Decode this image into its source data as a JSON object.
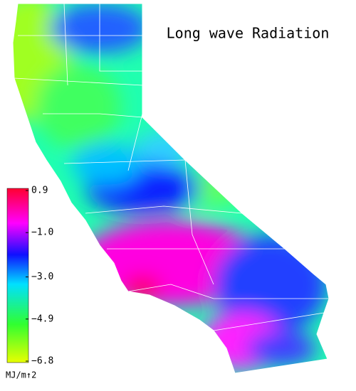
{
  "title": "Long wave Radiation",
  "colorbar": {
    "range": [
      -6.8,
      0.9
    ],
    "ticks": [
      0.9,
      {
        "value": -1.0,
        "label": "−1.0"
      },
      {
        "value": -3.0,
        "label": "−3.0"
      },
      {
        "value": -4.9,
        "label": "−4.9"
      },
      {
        "value": -6.8,
        "label": "−6.8"
      }
    ],
    "unit": "MJ/m↑2"
  }
}
